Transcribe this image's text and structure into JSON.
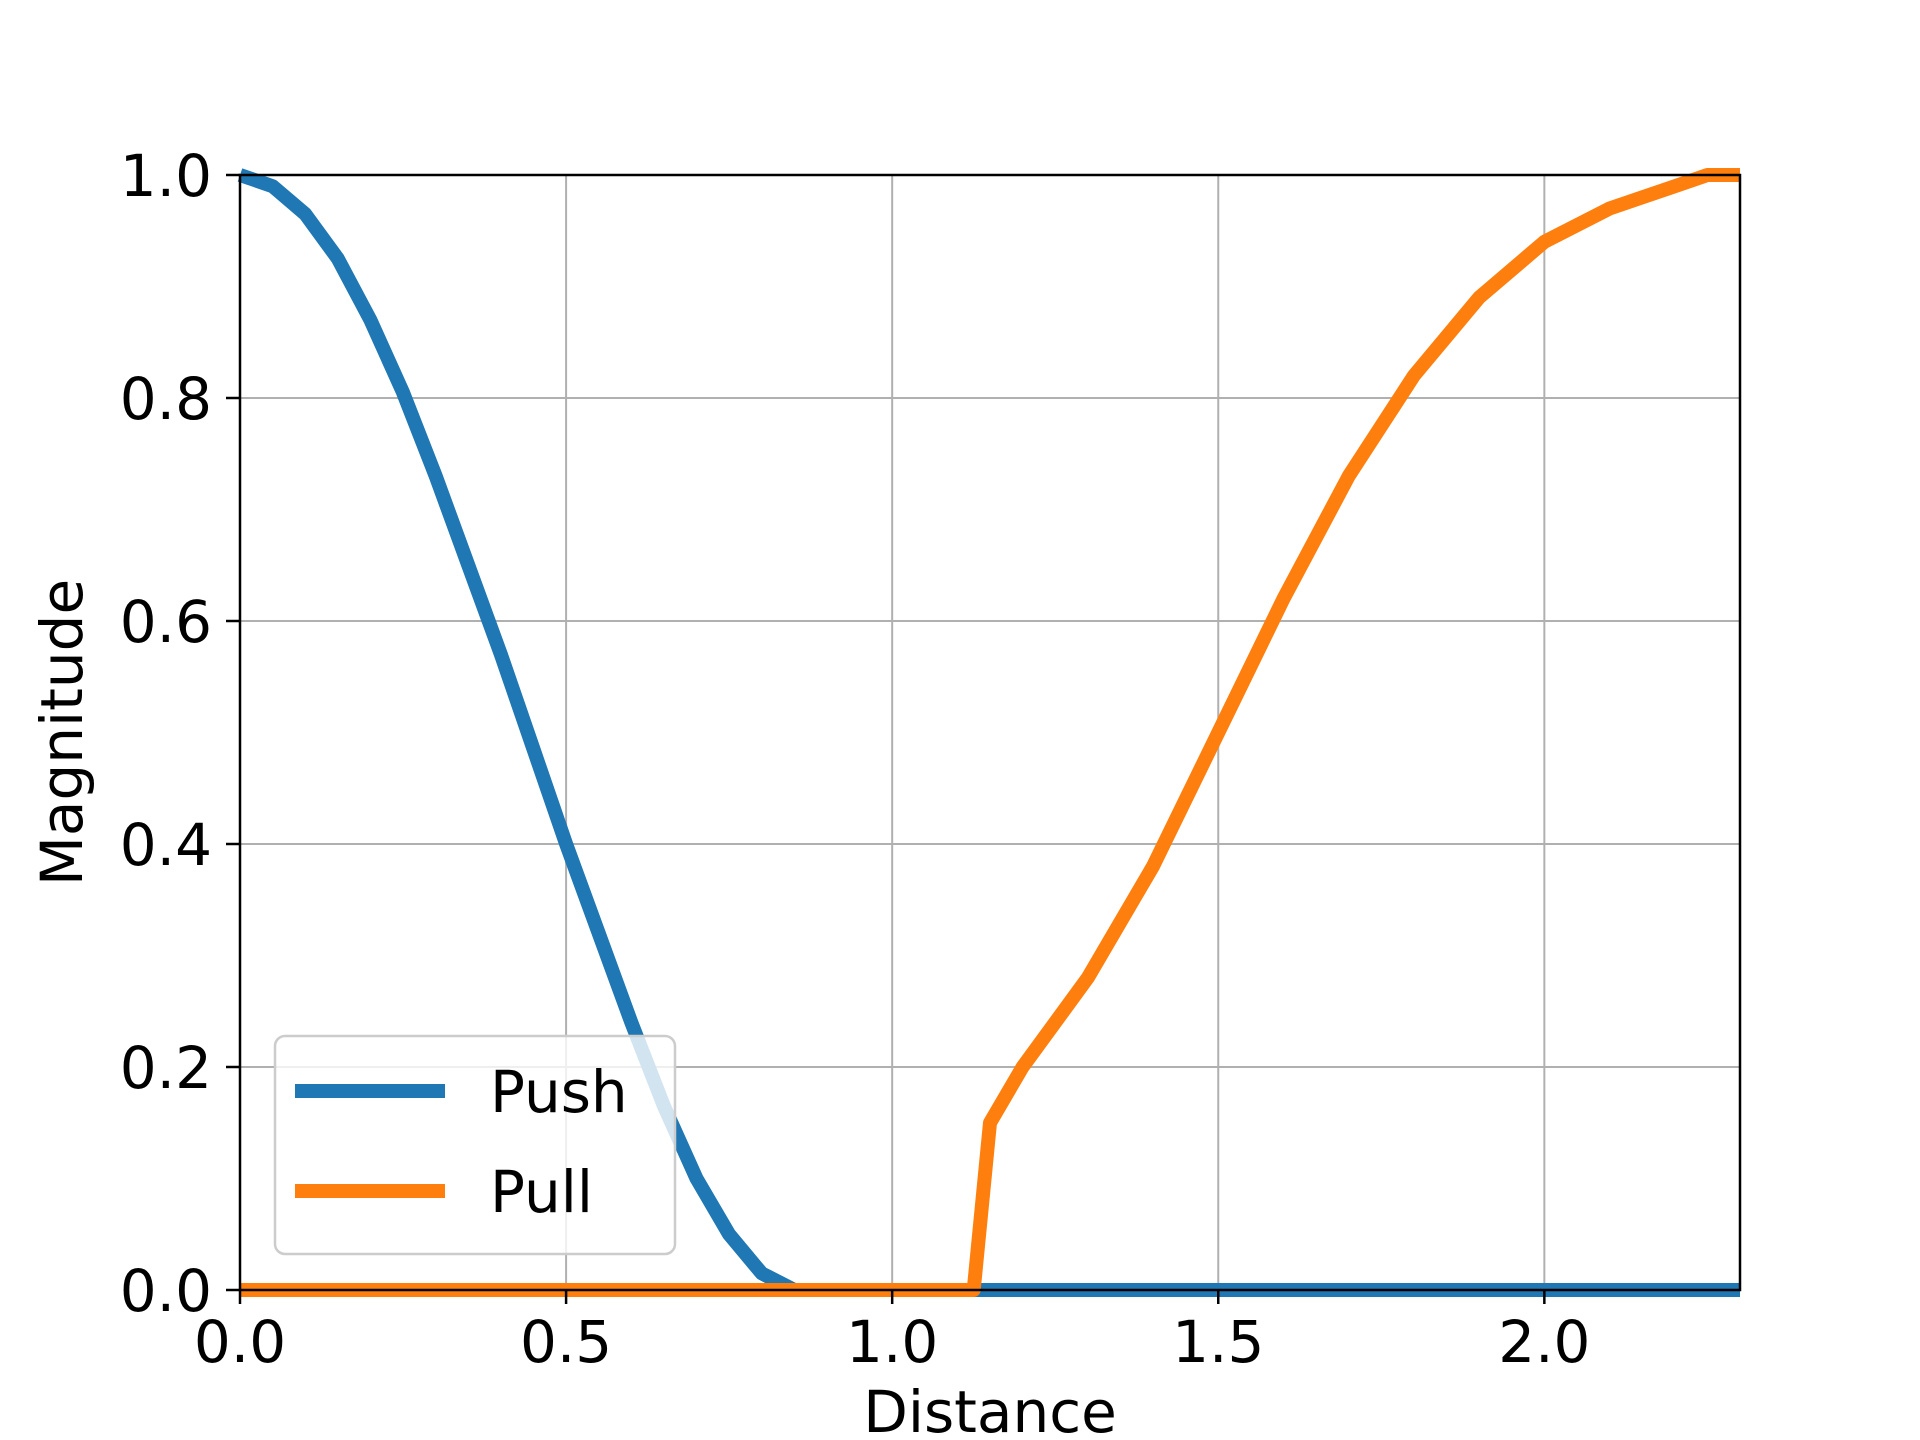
{
  "chart_data": {
    "type": "line",
    "title": "",
    "xlabel": "Distance",
    "ylabel": "Magnitude",
    "xlim": [
      0.0,
      2.3
    ],
    "ylim": [
      0.0,
      1.0
    ],
    "xticks": [
      0.0,
      0.5,
      1.0,
      1.5,
      2.0
    ],
    "xtick_labels": [
      "0.0",
      "0.5",
      "1.0",
      "1.5",
      "2.0"
    ],
    "yticks": [
      0.0,
      0.2,
      0.4,
      0.6,
      0.8,
      1.0
    ],
    "ytick_labels": [
      "0.0",
      "0.2",
      "0.4",
      "0.6",
      "0.8",
      "1.0"
    ],
    "grid": true,
    "legend": "lower-left",
    "series": [
      {
        "name": "Push",
        "color": "#1f77b4",
        "x": [
          0.0,
          0.05,
          0.1,
          0.15,
          0.2,
          0.25,
          0.3,
          0.35,
          0.4,
          0.45,
          0.5,
          0.55,
          0.6,
          0.65,
          0.7,
          0.75,
          0.8,
          0.85,
          0.9,
          0.95,
          0.975,
          1.0,
          1.5,
          2.0,
          2.3
        ],
        "y": [
          1.0,
          0.99,
          0.965,
          0.925,
          0.87,
          0.805,
          0.73,
          0.65,
          0.57,
          0.485,
          0.4,
          0.32,
          0.24,
          0.165,
          0.1,
          0.05,
          0.015,
          0.0,
          0.0,
          0.0,
          0.0,
          0.0,
          0.0,
          0.0,
          0.0
        ]
      },
      {
        "name": "Pull",
        "color": "#ff7f0e",
        "x": [
          0.0,
          0.5,
          1.0,
          1.1,
          1.125,
          1.15,
          1.2,
          1.3,
          1.4,
          1.5,
          1.6,
          1.7,
          1.8,
          1.9,
          2.0,
          2.1,
          2.2,
          2.25,
          2.3
        ],
        "y": [
          0.0,
          0.0,
          0.0,
          0.0,
          0.0,
          0.15,
          0.2,
          0.28,
          0.38,
          0.5,
          0.62,
          0.73,
          0.82,
          0.89,
          0.94,
          0.97,
          0.99,
          1.0,
          1.0
        ]
      }
    ]
  }
}
